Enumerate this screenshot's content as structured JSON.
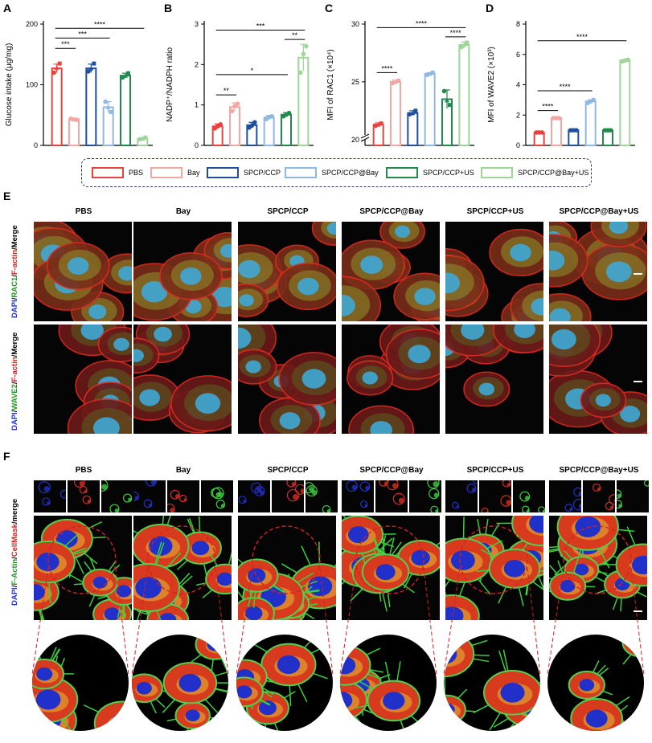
{
  "panels": {
    "A": "A",
    "B": "B",
    "C": "C",
    "D": "D",
    "E": "E",
    "F": "F"
  },
  "colors": {
    "PBS": "#e8423f",
    "Bay": "#f3a6a2",
    "SPCP/CCP": "#1f4e9e",
    "SPCP/CCP@Bay": "#8fb8e2",
    "SPCP/CCP+US": "#1f8a4c",
    "SPCP/CCP@Bay+US": "#9fd59a"
  },
  "legend": {
    "items": [
      "PBS",
      "Bay",
      "SPCP/CCP",
      "SPCP/CCP@Bay",
      "SPCP/CCP+US",
      "SPCP/CCP@Bay+US"
    ]
  },
  "chart_data": [
    {
      "id": "A",
      "type": "bar",
      "categories": [
        "PBS",
        "Bay",
        "SPCP/CCP",
        "SPCP/CCP@Bay",
        "SPCP/CCP+US",
        "SPCP/CCP@Bay+US"
      ],
      "values": [
        127,
        43,
        127,
        63,
        115,
        11
      ],
      "points": [
        [
          120,
          135,
          128
        ],
        [
          44,
          42,
          43
        ],
        [
          122,
          135,
          127
        ],
        [
          72,
          55,
          63
        ],
        [
          112,
          119,
          115
        ],
        [
          10,
          13,
          11
        ]
      ],
      "errors": [
        7,
        2,
        7,
        9,
        4,
        2
      ],
      "ylabel": "Glucose intake (μg/mg)",
      "ylim": [
        0,
        200
      ],
      "yticks": [
        0,
        100,
        200
      ],
      "sig": [
        {
          "from": 0,
          "to": 1,
          "y": 160,
          "label": "***"
        },
        {
          "from": 0,
          "to": 3,
          "y": 177,
          "label": "***"
        },
        {
          "from": 0,
          "to": 5,
          "y": 193,
          "label": "****"
        }
      ]
    },
    {
      "id": "B",
      "type": "bar",
      "categories": [
        "PBS",
        "Bay",
        "SPCP/CCP",
        "SPCP/CCP@Bay",
        "SPCP/CCP+US",
        "SPCP/CCP@Bay+US"
      ],
      "values": [
        0.47,
        0.95,
        0.5,
        0.69,
        0.76,
        2.17
      ],
      "points": [
        [
          0.42,
          0.52,
          0.47
        ],
        [
          0.85,
          1.03,
          0.97
        ],
        [
          0.44,
          0.57,
          0.49
        ],
        [
          0.65,
          0.72,
          0.7
        ],
        [
          0.72,
          0.8,
          0.76
        ],
        [
          1.8,
          2.45,
          2.26
        ]
      ],
      "errors": [
        0.06,
        0.1,
        0.07,
        0.05,
        0.05,
        0.33
      ],
      "ylabel": "NADP⁺/NADPH ratio",
      "ylim": [
        0,
        3
      ],
      "yticks": [
        0,
        1,
        2,
        3
      ],
      "sig": [
        {
          "from": 0,
          "to": 1,
          "y": 1.25,
          "label": "**"
        },
        {
          "from": 0,
          "to": 4,
          "y": 1.75,
          "label": "*"
        },
        {
          "from": 4,
          "to": 5,
          "y": 2.62,
          "label": "**"
        },
        {
          "from": 0,
          "to": 5,
          "y": 2.85,
          "label": "***"
        }
      ]
    },
    {
      "id": "C",
      "type": "bar",
      "categories": [
        "PBS",
        "Bay",
        "SPCP/CCP",
        "SPCP/CCP@Bay",
        "SPCP/CCP+US",
        "SPCP/CCP@Bay+US"
      ],
      "values": [
        21.3,
        25.0,
        22.3,
        25.7,
        23.5,
        28.2
      ],
      "points": [
        [
          21.2,
          21.4,
          21.3
        ],
        [
          24.9,
          25.1,
          25.0
        ],
        [
          22.2,
          22.5,
          22.3
        ],
        [
          25.6,
          25.8,
          25.7
        ],
        [
          24.2,
          23.0,
          23.4
        ],
        [
          28.0,
          28.4,
          28.2
        ]
      ],
      "errors": [
        0.15,
        0.15,
        0.2,
        0.1,
        0.8,
        0.25
      ],
      "ylabel": "MFI of RAC1 (×10⁴)",
      "ylim": [
        19.5,
        30
      ],
      "yticks": [
        20,
        25,
        30
      ],
      "axis_break": true,
      "sig": [
        {
          "from": 0,
          "to": 1,
          "y": 25.8,
          "label": "****"
        },
        {
          "from": 4,
          "to": 5,
          "y": 28.9,
          "label": "****"
        },
        {
          "from": 0,
          "to": 5,
          "y": 29.7,
          "label": "****"
        }
      ]
    },
    {
      "id": "D",
      "type": "bar",
      "categories": [
        "PBS",
        "Bay",
        "SPCP/CCP",
        "SPCP/CCP@Bay",
        "SPCP/CCP+US",
        "SPCP/CCP@Bay+US"
      ],
      "values": [
        0.85,
        1.8,
        1.0,
        2.9,
        1.0,
        5.6
      ],
      "points": [
        [
          0.85,
          0.85,
          0.85
        ],
        [
          1.8,
          1.8,
          1.8
        ],
        [
          1.0,
          1.0,
          1.0
        ],
        [
          2.8,
          3.0,
          2.9
        ],
        [
          1.0,
          1.0,
          1.0
        ],
        [
          5.55,
          5.65,
          5.6
        ]
      ],
      "errors": [
        0.03,
        0.03,
        0.03,
        0.1,
        0.03,
        0.06
      ],
      "ylabel": "MFI of WAVE2 (×10³)",
      "ylim": [
        0,
        8
      ],
      "yticks": [
        0,
        2,
        4,
        6,
        8
      ],
      "sig": [
        {
          "from": 0,
          "to": 1,
          "y": 2.3,
          "label": "****"
        },
        {
          "from": 0,
          "to": 3,
          "y": 3.6,
          "label": "****"
        },
        {
          "from": 0,
          "to": 5,
          "y": 6.9,
          "label": "****"
        }
      ]
    }
  ],
  "panelE": {
    "columns": [
      "PBS",
      "Bay",
      "SPCP/CCP",
      "SPCP/CCP@Bay",
      "SPCP/CCP+US",
      "SPCP/CCP@Bay+US"
    ],
    "rows": [
      {
        "parts": [
          {
            "t": "DAPI",
            "c": "#2233cc"
          },
          {
            "t": "/",
            "c": "#000"
          },
          {
            "t": "RAC1",
            "c": "#1a9a1a"
          },
          {
            "t": "/",
            "c": "#000"
          },
          {
            "t": "F-actin",
            "c": "#d62020"
          },
          {
            "t": "/Merge",
            "c": "#000"
          }
        ]
      },
      {
        "parts": [
          {
            "t": "DAPI",
            "c": "#2233cc"
          },
          {
            "t": "/",
            "c": "#000"
          },
          {
            "t": "WAVE2",
            "c": "#1a9a1a"
          },
          {
            "t": "/",
            "c": "#000"
          },
          {
            "t": "F-actin",
            "c": "#d62020"
          },
          {
            "t": "/Merge",
            "c": "#000"
          }
        ]
      }
    ]
  },
  "panelF": {
    "columns": [
      "PBS",
      "Bay",
      "SPCP/CCP",
      "SPCP/CCP@Bay",
      "SPCP/CCP+US",
      "SPCP/CCP@Bay+US"
    ],
    "row": {
      "parts": [
        {
          "t": "DAPI",
          "c": "#2233cc"
        },
        {
          "t": "/",
          "c": "#000"
        },
        {
          "t": "F-Actin",
          "c": "#1a9a1a"
        },
        {
          "t": "/",
          "c": "#000"
        },
        {
          "t": "CellMask",
          "c": "#d62020"
        },
        {
          "t": "/merge",
          "c": "#000"
        }
      ]
    }
  }
}
